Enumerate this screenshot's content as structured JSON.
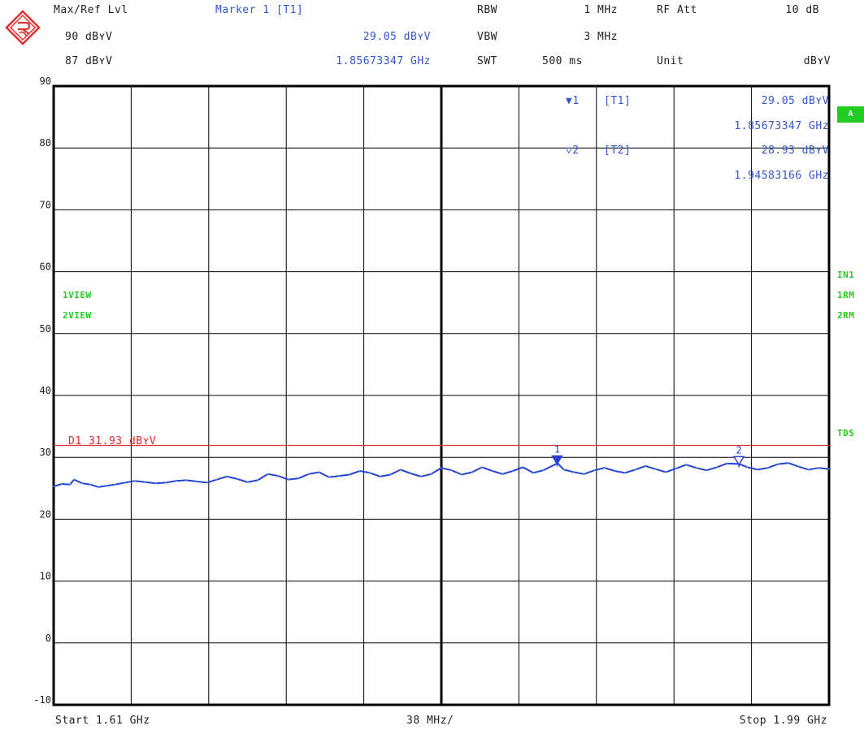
{
  "header": {
    "maxref_label": "Max/Ref Lvl",
    "maxref_value1": "90 dBʏV",
    "maxref_value2": "87 dBʏV",
    "marker_label": "Marker 1 [T1]",
    "marker_level": "29.05 dBʏV",
    "marker_freq": "1.85673347 GHz",
    "rbw_label": "RBW",
    "rbw_value": "1 MHz",
    "vbw_label": "VBW",
    "vbw_value": "3 MHz",
    "swt_label": "SWT",
    "swt_value": "500 ms",
    "rfatt_label": "RF Att",
    "rfatt_value": "10 dB",
    "unit_label": "Unit",
    "unit_value": "dBʏV"
  },
  "marker_info": {
    "m1_label": "1",
    "m1_tag": "[T1]",
    "m1_level": "29.05 dBʏV",
    "m1_freq": "1.85673347 GHz",
    "m2_label": "2",
    "m2_tag": "[T2]",
    "m2_level": "28.93 dBʏV",
    "m2_freq": "1.94583166 GHz"
  },
  "side_labels": {
    "badge_a": "A",
    "in1": "IN1",
    "rm1": "1RM",
    "rm2": "2RM",
    "tds": "TDS",
    "view1": "1VIEW",
    "view2": "2VIEW"
  },
  "footer": {
    "start": "Start 1.61 GHz",
    "span_per_div": "38 MHz/",
    "stop": "Stop 1.99 GHz"
  },
  "colors": {
    "trace": "#2a3fd4",
    "trace2": "#20b8c8",
    "display_line": "#e03030",
    "marker": "#2a3fd4",
    "grid": "#000000",
    "accent_green": "#22cc22"
  },
  "chart_data": {
    "type": "line",
    "xlim": [
      1.61,
      1.99
    ],
    "ylim": [
      -10,
      90
    ],
    "y_ticks": [
      90,
      80,
      70,
      60,
      50,
      40,
      30,
      20,
      10,
      0,
      -10
    ],
    "grid": true,
    "display_line": {
      "label": "D1 31.93 dBʏV",
      "value": 31.93
    },
    "markers": [
      {
        "label": "1",
        "x": 1.85673347,
        "y": 29.05,
        "filled": true
      },
      {
        "label": "2",
        "x": 1.94583166,
        "y": 28.93,
        "filled": false
      }
    ],
    "series": [
      {
        "x": [
          1.61,
          1.614,
          1.618,
          1.62,
          1.624,
          1.628,
          1.632,
          1.636,
          1.64,
          1.645,
          1.65,
          1.655,
          1.66,
          1.665,
          1.67,
          1.675,
          1.68,
          1.685,
          1.69,
          1.695,
          1.7,
          1.705,
          1.71,
          1.715,
          1.72,
          1.725,
          1.73,
          1.735,
          1.74,
          1.745,
          1.75,
          1.755,
          1.76,
          1.765,
          1.77,
          1.775,
          1.78,
          1.785,
          1.79,
          1.795,
          1.8,
          1.805,
          1.81,
          1.815,
          1.82,
          1.825,
          1.83,
          1.835,
          1.84,
          1.845,
          1.85,
          1.857,
          1.86,
          1.865,
          1.87,
          1.875,
          1.88,
          1.885,
          1.89,
          1.895,
          1.9,
          1.905,
          1.91,
          1.915,
          1.92,
          1.925,
          1.93,
          1.935,
          1.94,
          1.946,
          1.95,
          1.955,
          1.96,
          1.965,
          1.97,
          1.975,
          1.98,
          1.985,
          1.99
        ],
        "y": [
          25.3,
          25.7,
          25.6,
          26.4,
          25.8,
          25.6,
          25.2,
          25.4,
          25.6,
          25.9,
          26.2,
          26.0,
          25.8,
          25.9,
          26.2,
          26.3,
          26.1,
          25.9,
          26.4,
          26.9,
          26.5,
          26.0,
          26.3,
          27.3,
          27.0,
          26.4,
          26.6,
          27.3,
          27.6,
          26.8,
          27.0,
          27.2,
          27.8,
          27.5,
          26.9,
          27.2,
          28.0,
          27.4,
          26.9,
          27.3,
          28.3,
          27.9,
          27.2,
          27.6,
          28.4,
          27.8,
          27.3,
          27.8,
          28.4,
          27.5,
          27.9,
          29.05,
          28.0,
          27.6,
          27.3,
          27.9,
          28.3,
          27.8,
          27.5,
          28.0,
          28.6,
          28.1,
          27.6,
          28.2,
          28.8,
          28.3,
          27.9,
          28.4,
          29.0,
          28.93,
          28.4,
          28.0,
          28.3,
          28.9,
          29.1,
          28.5,
          28.0,
          28.3,
          28.1
        ]
      }
    ]
  }
}
